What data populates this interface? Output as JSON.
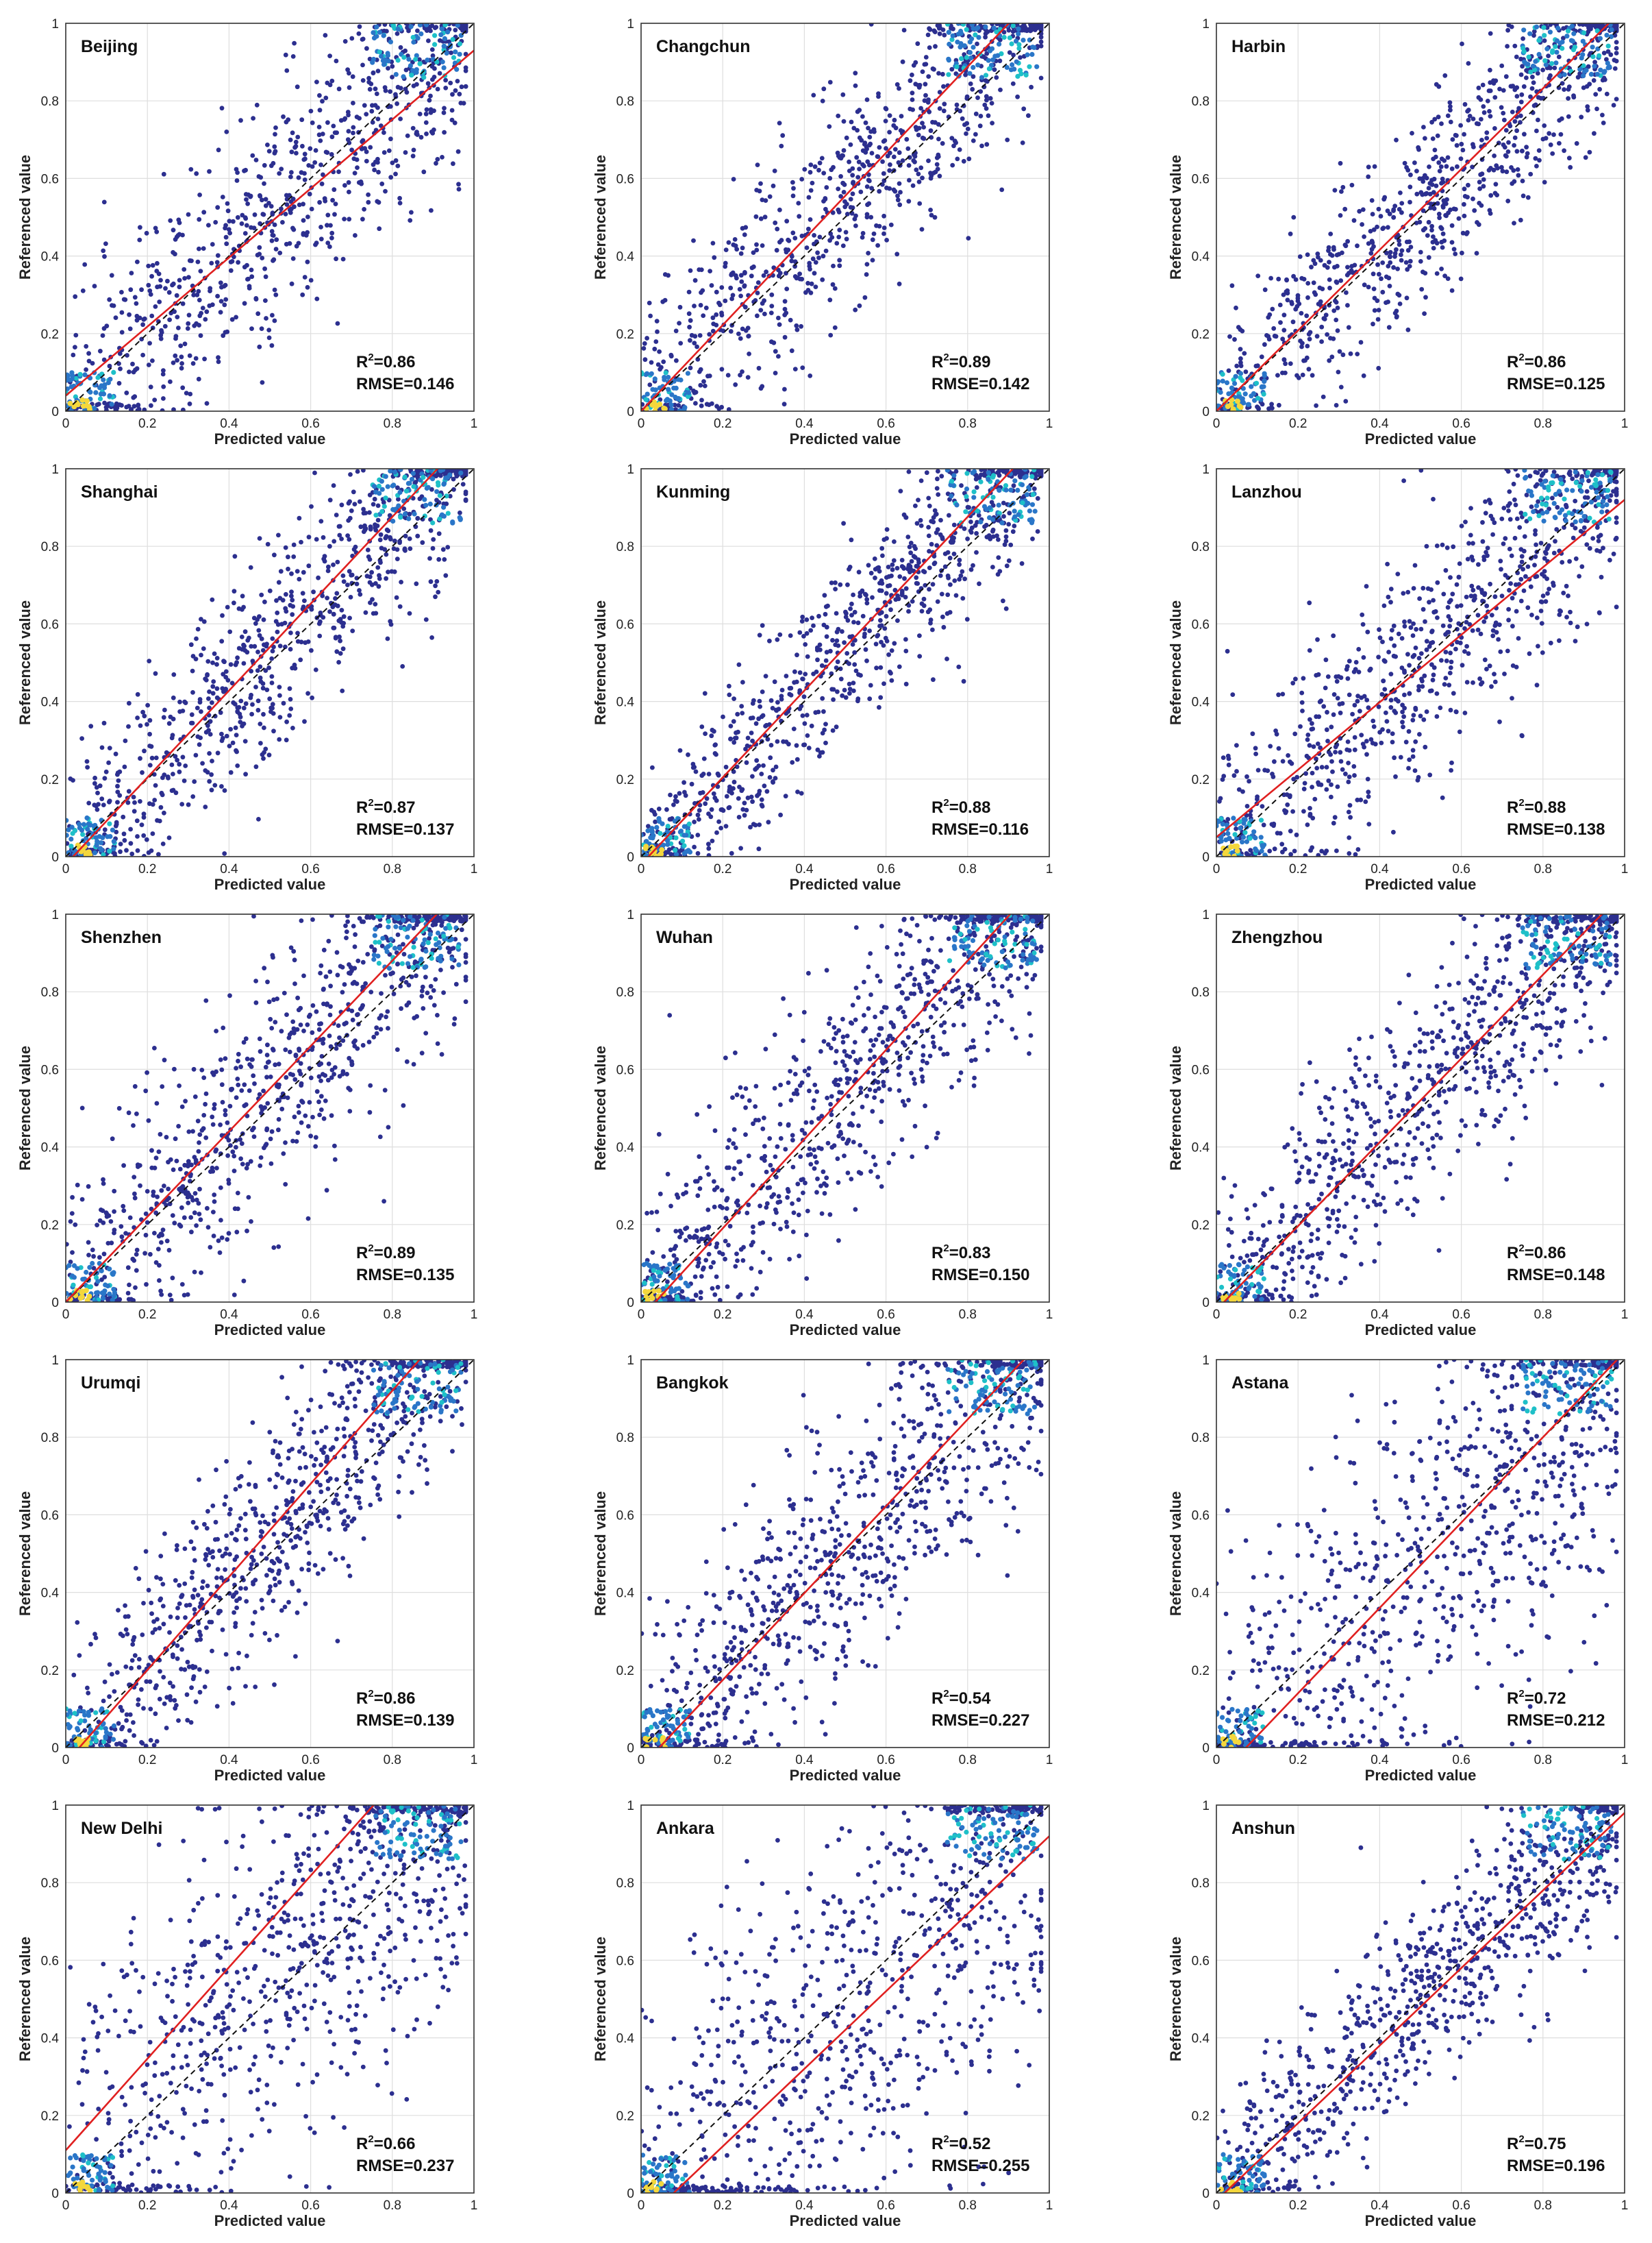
{
  "chart_data": [
    {
      "type": "scatter",
      "city": "Beijing",
      "r2_prefix": "R",
      "r2_suffix": "=0.86",
      "rmse": "RMSE=0.146",
      "xlabel": "Predicted value",
      "ylabel": "Referenced value",
      "xlim": [
        0,
        1
      ],
      "ylim": [
        0,
        1
      ],
      "xticks": [
        "0",
        "0.2",
        "0.4",
        "0.6",
        "0.8",
        "1"
      ],
      "yticks": [
        "0",
        "0.2",
        "0.4",
        "0.6",
        "0.8",
        "1"
      ],
      "fit_line": {
        "intercept": 0.04,
        "slope": 0.89
      },
      "reference_line": "1:1",
      "point_trend": {
        "slope": 1.0,
        "intercept": 0.0,
        "spread": 0.16
      },
      "grid": true
    },
    {
      "type": "scatter",
      "city": "Changchun",
      "r2_prefix": "R",
      "r2_suffix": "=0.89",
      "rmse": "RMSE=0.142",
      "xlabel": "Predicted value",
      "ylabel": "Referenced value",
      "xlim": [
        0,
        1
      ],
      "ylim": [
        0,
        1
      ],
      "xticks": [
        "0",
        "0.2",
        "0.4",
        "0.6",
        "0.8",
        "1"
      ],
      "yticks": [
        "0",
        "0.2",
        "0.4",
        "0.6",
        "0.8",
        "1"
      ],
      "fit_line": {
        "intercept": 0.0,
        "slope": 1.11
      },
      "reference_line": "1:1",
      "point_trend": {
        "slope": 1.1,
        "intercept": 0.0,
        "spread": 0.14
      },
      "grid": true
    },
    {
      "type": "scatter",
      "city": "Harbin",
      "r2_prefix": "R",
      "r2_suffix": "=0.86",
      "rmse": "RMSE=0.125",
      "xlabel": "Predicted value",
      "ylabel": "Referenced value",
      "xlim": [
        0,
        1
      ],
      "ylim": [
        0,
        1
      ],
      "xticks": [
        "0",
        "0.2",
        "0.4",
        "0.6",
        "0.8",
        "1"
      ],
      "yticks": [
        "0",
        "0.2",
        "0.4",
        "0.6",
        "0.8",
        "1"
      ],
      "fit_line": {
        "intercept": 0.0,
        "slope": 1.04
      },
      "reference_line": "1:1",
      "point_trend": {
        "slope": 1.02,
        "intercept": 0.01,
        "spread": 0.13
      },
      "grid": true
    },
    {
      "type": "scatter",
      "city": "Shanghai",
      "r2_prefix": "R",
      "r2_suffix": "=0.87",
      "rmse": "RMSE=0.137",
      "xlabel": "Predicted value",
      "ylabel": "Referenced value",
      "xlim": [
        0,
        1
      ],
      "ylim": [
        0,
        1
      ],
      "xticks": [
        "0",
        "0.2",
        "0.4",
        "0.6",
        "0.8",
        "1"
      ],
      "yticks": [
        "0",
        "0.2",
        "0.4",
        "0.6",
        "0.8",
        "1"
      ],
      "fit_line": {
        "intercept": -0.02,
        "slope": 1.12
      },
      "reference_line": "1:1",
      "point_trend": {
        "slope": 1.1,
        "intercept": -0.01,
        "spread": 0.14
      },
      "grid": true
    },
    {
      "type": "scatter",
      "city": "Kunming",
      "r2_prefix": "R",
      "r2_suffix": "=0.88",
      "rmse": "RMSE=0.116",
      "xlabel": "Predicted value",
      "ylabel": "Referenced value",
      "xlim": [
        0,
        1
      ],
      "ylim": [
        0,
        1
      ],
      "xticks": [
        "0",
        "0.2",
        "0.4",
        "0.6",
        "0.8",
        "1"
      ],
      "yticks": [
        "0",
        "0.2",
        "0.4",
        "0.6",
        "0.8",
        "1"
      ],
      "fit_line": {
        "intercept": -0.02,
        "slope": 1.12
      },
      "reference_line": "1:1",
      "point_trend": {
        "slope": 1.1,
        "intercept": -0.01,
        "spread": 0.12
      },
      "grid": true
    },
    {
      "type": "scatter",
      "city": "Lanzhou",
      "r2_prefix": "R",
      "r2_suffix": "=0.88",
      "rmse": "RMSE=0.138",
      "xlabel": "Predicted value",
      "ylabel": "Referenced value",
      "xlim": [
        0,
        1
      ],
      "ylim": [
        0,
        1
      ],
      "xticks": [
        "0",
        "0.2",
        "0.4",
        "0.6",
        "0.8",
        "1"
      ],
      "yticks": [
        "0",
        "0.2",
        "0.4",
        "0.6",
        "0.8",
        "1"
      ],
      "fit_line": {
        "intercept": 0.05,
        "slope": 0.87
      },
      "reference_line": "1:1",
      "point_trend": {
        "slope": 1.0,
        "intercept": 0.0,
        "spread": 0.15
      },
      "grid": true
    },
    {
      "type": "scatter",
      "city": "Shenzhen",
      "r2_prefix": "R",
      "r2_suffix": "=0.89",
      "rmse": "RMSE=0.135",
      "xlabel": "Predicted value",
      "ylabel": "Referenced value",
      "xlim": [
        0,
        1
      ],
      "ylim": [
        0,
        1
      ],
      "xticks": [
        "0",
        "0.2",
        "0.4",
        "0.6",
        "0.8",
        "1"
      ],
      "yticks": [
        "0",
        "0.2",
        "0.4",
        "0.6",
        "0.8",
        "1"
      ],
      "fit_line": {
        "intercept": 0.0,
        "slope": 1.1
      },
      "reference_line": "1:1",
      "point_trend": {
        "slope": 1.08,
        "intercept": 0.0,
        "spread": 0.16
      },
      "grid": true
    },
    {
      "type": "scatter",
      "city": "Wuhan",
      "r2_prefix": "R",
      "r2_suffix": "=0.83",
      "rmse": "RMSE=0.150",
      "xlabel": "Predicted value",
      "ylabel": "Referenced value",
      "xlim": [
        0,
        1
      ],
      "ylim": [
        0,
        1
      ],
      "xticks": [
        "0",
        "0.2",
        "0.4",
        "0.6",
        "0.8",
        "1"
      ],
      "yticks": [
        "0",
        "0.2",
        "0.4",
        "0.6",
        "0.8",
        "1"
      ],
      "fit_line": {
        "intercept": -0.04,
        "slope": 1.15
      },
      "reference_line": "1:1",
      "point_trend": {
        "slope": 1.12,
        "intercept": -0.02,
        "spread": 0.15
      },
      "grid": true
    },
    {
      "type": "scatter",
      "city": "Zhengzhou",
      "r2_prefix": "R",
      "r2_suffix": "=0.86",
      "rmse": "RMSE=0.148",
      "xlabel": "Predicted value",
      "ylabel": "Referenced value",
      "xlim": [
        0,
        1
      ],
      "ylim": [
        0,
        1
      ],
      "xticks": [
        "0",
        "0.2",
        "0.4",
        "0.6",
        "0.8",
        "1"
      ],
      "yticks": [
        "0",
        "0.2",
        "0.4",
        "0.6",
        "0.8",
        "1"
      ],
      "fit_line": {
        "intercept": -0.02,
        "slope": 1.08
      },
      "reference_line": "1:1",
      "point_trend": {
        "slope": 1.06,
        "intercept": 0.0,
        "spread": 0.15
      },
      "grid": true
    },
    {
      "type": "scatter",
      "city": "Urumqi",
      "r2_prefix": "R",
      "r2_suffix": "=0.86",
      "rmse": "RMSE=0.139",
      "xlabel": "Predicted value",
      "ylabel": "Referenced value",
      "xlim": [
        0,
        1
      ],
      "ylim": [
        0,
        1
      ],
      "xticks": [
        "0",
        "0.2",
        "0.4",
        "0.6",
        "0.8",
        "1"
      ],
      "yticks": [
        "0",
        "0.2",
        "0.4",
        "0.6",
        "0.8",
        "1"
      ],
      "fit_line": {
        "intercept": -0.04,
        "slope": 1.2
      },
      "reference_line": "1:1",
      "point_trend": {
        "slope": 1.18,
        "intercept": -0.04,
        "spread": 0.14
      },
      "grid": true
    },
    {
      "type": "scatter",
      "city": "Bangkok",
      "r2_prefix": "R",
      "r2_suffix": "=0.54",
      "rmse": "RMSE=0.227",
      "xlabel": "Predicted value",
      "ylabel": "Referenced value",
      "xlim": [
        0,
        1
      ],
      "ylim": [
        0,
        1
      ],
      "xticks": [
        "0",
        "0.2",
        "0.4",
        "0.6",
        "0.8",
        "1"
      ],
      "yticks": [
        "0",
        "0.2",
        "0.4",
        "0.6",
        "0.8",
        "1"
      ],
      "fit_line": {
        "intercept": -0.05,
        "slope": 1.12
      },
      "reference_line": "1:1",
      "point_trend": {
        "slope": 1.1,
        "intercept": -0.03,
        "spread": 0.17
      },
      "grid": true
    },
    {
      "type": "scatter",
      "city": "Astana",
      "r2_prefix": "R",
      "r2_suffix": "=0.72",
      "rmse": "RMSE=0.212",
      "xlabel": "Predicted value",
      "ylabel": "Referenced value",
      "xlim": [
        0,
        1
      ],
      "ylim": [
        0,
        1
      ],
      "xticks": [
        "0",
        "0.2",
        "0.4",
        "0.6",
        "0.8",
        "1"
      ],
      "yticks": [
        "0",
        "0.2",
        "0.4",
        "0.6",
        "0.8",
        "1"
      ],
      "fit_line": {
        "intercept": -0.08,
        "slope": 1.1
      },
      "reference_line": "1:1",
      "point_trend": {
        "slope": 1.0,
        "intercept": -0.05,
        "spread": 0.25
      },
      "grid": true
    },
    {
      "type": "scatter",
      "city": "New Delhi",
      "r2_prefix": "R",
      "r2_suffix": "=0.66",
      "rmse": "RMSE=0.237",
      "xlabel": "Predicted value",
      "ylabel": "Referenced value",
      "xlim": [
        0,
        1
      ],
      "ylim": [
        0,
        1
      ],
      "xticks": [
        "0",
        "0.2",
        "0.4",
        "0.6",
        "0.8",
        "1"
      ],
      "yticks": [
        "0",
        "0.2",
        "0.4",
        "0.6",
        "0.8",
        "1"
      ],
      "fit_line": {
        "intercept": 0.11,
        "slope": 1.18
      },
      "reference_line": "1:1",
      "point_trend": {
        "slope": 1.0,
        "intercept": 0.05,
        "spread": 0.25
      },
      "grid": true
    },
    {
      "type": "scatter",
      "city": "Ankara",
      "r2_prefix": "R",
      "r2_suffix": "=0.52",
      "rmse": "RMSE=0.255",
      "xlabel": "Predicted value",
      "ylabel": "Referenced value",
      "xlim": [
        0,
        1
      ],
      "ylim": [
        0,
        1
      ],
      "xticks": [
        "0",
        "0.2",
        "0.4",
        "0.6",
        "0.8",
        "1"
      ],
      "yticks": [
        "0",
        "0.2",
        "0.4",
        "0.6",
        "0.8",
        "1"
      ],
      "fit_line": {
        "intercept": -0.08,
        "slope": 1.0
      },
      "reference_line": "1:1",
      "point_trend": {
        "slope": 1.0,
        "intercept": -0.05,
        "spread": 0.28
      },
      "grid": true
    },
    {
      "type": "scatter",
      "city": "Anshun",
      "r2_prefix": "R",
      "r2_suffix": "=0.75",
      "rmse": "RMSE=0.196",
      "xlabel": "Predicted value",
      "ylabel": "Referenced value",
      "xlim": [
        0,
        1
      ],
      "ylim": [
        0,
        1
      ],
      "xticks": [
        "0",
        "0.2",
        "0.4",
        "0.6",
        "0.8",
        "1"
      ],
      "yticks": [
        "0",
        "0.2",
        "0.4",
        "0.6",
        "0.8",
        "1"
      ],
      "fit_line": {
        "intercept": -0.02,
        "slope": 1.0
      },
      "reference_line": "1:1",
      "point_trend": {
        "slope": 1.0,
        "intercept": 0.0,
        "spread": 0.13
      },
      "grid": true
    }
  ],
  "colors": {
    "point": "#2c2f8f",
    "dense_high": "#1ec0c8",
    "dense_mid": "#2a76c8",
    "dense_core": "#f4d73c",
    "fit_line": "#e02020",
    "reference_line": "#111111",
    "grid": "#dedede",
    "axis": "#333333"
  }
}
